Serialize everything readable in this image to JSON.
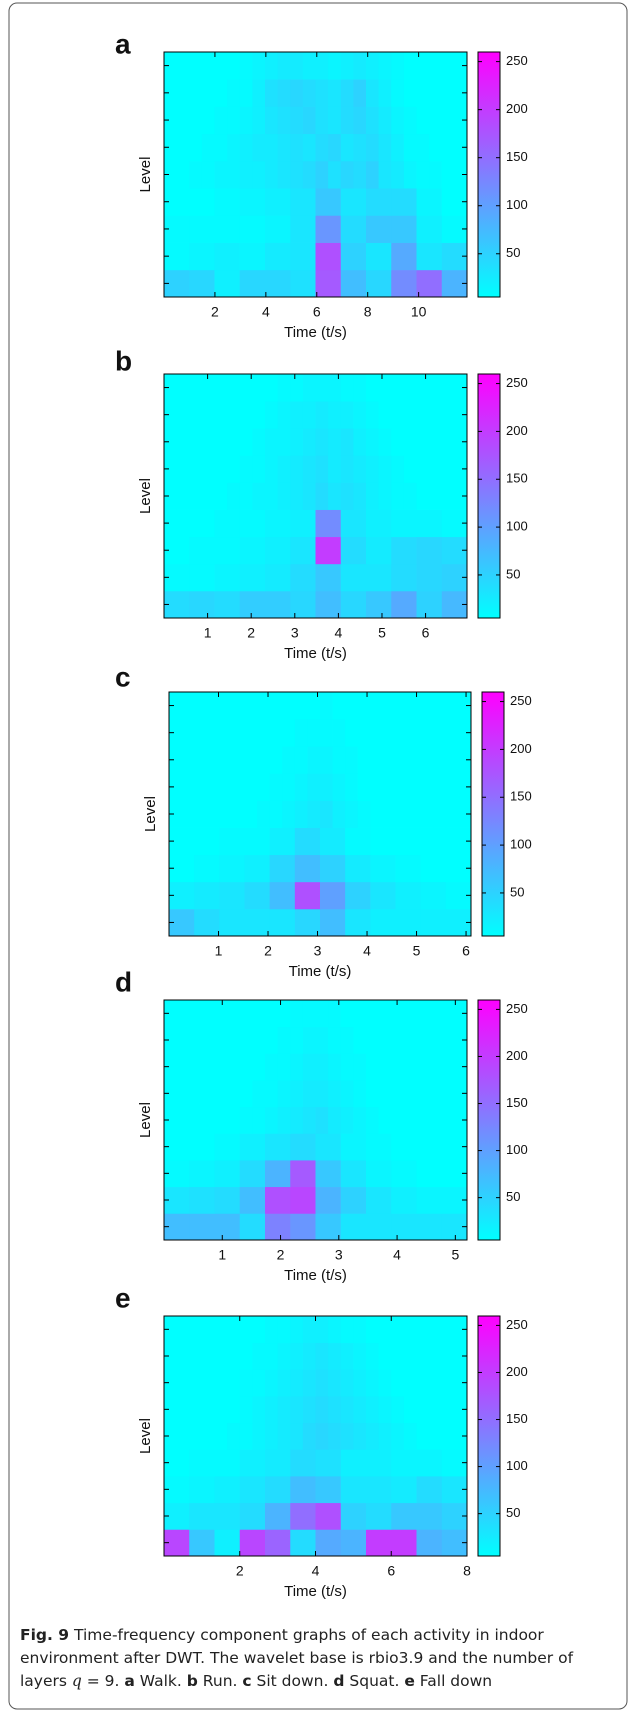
{
  "chart_data": [
    {
      "type": "heatmap",
      "panel_label": "a",
      "xlabel": "Time (t/s)",
      "ylabel": "Level",
      "xlim": [
        0,
        11.9
      ],
      "xticks": [
        2,
        4,
        6,
        8,
        10
      ],
      "clim": [
        5,
        260
      ],
      "cticks": [
        50,
        100,
        150,
        200,
        250
      ],
      "colormap": [
        "#00ffff",
        "#ff00ff"
      ],
      "values": [
        [
          50,
          45,
          20,
          45,
          45,
          35,
          170,
          70,
          45,
          120,
          150,
          80
        ],
        [
          10,
          15,
          20,
          15,
          25,
          30,
          180,
          50,
          30,
          90,
          30,
          40
        ],
        [
          10,
          10,
          10,
          10,
          15,
          30,
          110,
          40,
          60,
          60,
          20,
          10
        ],
        [
          5,
          5,
          10,
          15,
          20,
          30,
          60,
          30,
          40,
          40,
          15,
          5
        ],
        [
          5,
          5,
          10,
          10,
          15,
          15,
          20,
          20,
          25,
          30,
          35,
          40,
          50,
          35,
          45,
          40,
          50,
          30,
          25,
          15,
          10,
          10,
          5,
          5
        ],
        [
          5,
          5,
          5,
          10,
          10,
          15,
          20,
          25,
          25,
          30,
          35,
          30,
          40,
          45,
          30,
          35,
          40,
          30,
          20,
          10,
          10,
          5,
          5,
          5
        ],
        [
          5,
          5,
          5,
          5,
          10,
          10,
          15,
          20,
          30,
          35,
          40,
          45,
          35,
          30,
          40,
          45,
          35,
          25,
          15,
          10,
          5,
          5,
          5,
          5
        ],
        [
          5,
          5,
          5,
          5,
          5,
          10,
          10,
          20,
          35,
          40,
          45,
          40,
          35,
          30,
          40,
          50,
          30,
          20,
          10,
          5,
          5,
          5,
          5,
          5
        ],
        [
          5,
          5,
          5,
          5,
          5,
          5,
          10,
          15,
          20,
          25,
          25,
          20,
          20,
          15,
          20,
          25,
          20,
          15,
          10,
          5,
          5,
          5,
          5,
          5
        ]
      ]
    },
    {
      "type": "heatmap",
      "panel_label": "b",
      "xlabel": "Time (t/s)",
      "ylabel": "Level",
      "xlim": [
        0,
        6.95
      ],
      "xticks": [
        1,
        2,
        3,
        4,
        5,
        6
      ],
      "clim": [
        5,
        260
      ],
      "cticks": [
        50,
        100,
        150,
        200,
        250
      ],
      "colormap": [
        "#00ffff",
        "#ff00ff"
      ],
      "values": [
        [
          40,
          45,
          40,
          55,
          55,
          45,
          70,
          45,
          60,
          90,
          50,
          75
        ],
        [
          10,
          10,
          15,
          20,
          25,
          40,
          60,
          30,
          30,
          40,
          45,
          50
        ],
        [
          5,
          10,
          10,
          15,
          20,
          30,
          200,
          40,
          25,
          40,
          45,
          40
        ],
        [
          5,
          5,
          10,
          10,
          15,
          20,
          120,
          30,
          20,
          15,
          15,
          10
        ],
        [
          5,
          5,
          5,
          5,
          5,
          10,
          10,
          15,
          15,
          20,
          25,
          30,
          40,
          30,
          35,
          30,
          20,
          15,
          10,
          10,
          5,
          5,
          5,
          5
        ],
        [
          5,
          5,
          5,
          5,
          5,
          5,
          10,
          10,
          15,
          20,
          25,
          30,
          35,
          25,
          30,
          25,
          20,
          15,
          10,
          5,
          5,
          5,
          5,
          5
        ],
        [
          5,
          5,
          5,
          5,
          5,
          5,
          5,
          10,
          15,
          15,
          20,
          25,
          30,
          25,
          30,
          20,
          15,
          10,
          5,
          5,
          5,
          5,
          5,
          5
        ],
        [
          5,
          5,
          5,
          5,
          5,
          5,
          5,
          5,
          10,
          15,
          20,
          20,
          25,
          20,
          20,
          15,
          10,
          5,
          5,
          5,
          5,
          5,
          5,
          5
        ],
        [
          5,
          5,
          5,
          5,
          5,
          5,
          5,
          5,
          5,
          10,
          10,
          15,
          15,
          15,
          10,
          10,
          5,
          5,
          5,
          5,
          5,
          5,
          5,
          5
        ]
      ]
    },
    {
      "type": "heatmap",
      "panel_label": "c",
      "xlabel": "Time (t/s)",
      "ylabel": "Level",
      "xlim": [
        0,
        6.1
      ],
      "xticks": [
        1,
        2,
        3,
        4,
        5,
        6
      ],
      "clim": [
        5,
        260
      ],
      "cticks": [
        50,
        100,
        150,
        200,
        250
      ],
      "colormap": [
        "#00ffff",
        "#ff00ff"
      ],
      "values": [
        [
          60,
          40,
          30,
          30,
          30,
          45,
          70,
          30,
          20,
          20,
          20,
          20
        ],
        [
          20,
          25,
          30,
          40,
          70,
          180,
          100,
          50,
          30,
          20,
          15,
          10
        ],
        [
          5,
          10,
          15,
          20,
          45,
          70,
          50,
          25,
          15,
          10,
          5,
          5
        ],
        [
          5,
          5,
          10,
          10,
          20,
          40,
          25,
          10,
          5,
          5,
          5,
          5
        ],
        [
          5,
          5,
          5,
          5,
          5,
          5,
          5,
          10,
          10,
          15,
          20,
          25,
          30,
          20,
          15,
          10,
          5,
          5,
          5,
          5,
          5,
          5,
          5,
          5
        ],
        [
          5,
          5,
          5,
          5,
          5,
          5,
          5,
          5,
          10,
          10,
          15,
          20,
          20,
          15,
          10,
          5,
          5,
          5,
          5,
          5,
          5,
          5,
          5,
          5
        ],
        [
          5,
          5,
          5,
          5,
          5,
          5,
          5,
          5,
          5,
          10,
          10,
          15,
          15,
          10,
          10,
          5,
          5,
          5,
          5,
          5,
          5,
          5,
          5,
          5
        ],
        [
          5,
          5,
          5,
          5,
          5,
          5,
          5,
          5,
          5,
          5,
          10,
          10,
          10,
          10,
          5,
          5,
          5,
          5,
          5,
          5,
          5,
          5,
          5,
          5
        ],
        [
          5,
          5,
          5,
          5,
          5,
          5,
          5,
          5,
          5,
          5,
          5,
          5,
          10,
          5,
          5,
          5,
          5,
          5,
          5,
          5,
          5,
          5,
          5,
          5
        ]
      ]
    },
    {
      "type": "heatmap",
      "panel_label": "d",
      "xlabel": "Time (t/s)",
      "ylabel": "Level",
      "xlim": [
        0,
        5.2
      ],
      "xticks": [
        1,
        2,
        3,
        4,
        5
      ],
      "clim": [
        5,
        260
      ],
      "cticks": [
        50,
        100,
        150,
        200,
        250
      ],
      "colormap": [
        "#00ffff",
        "#ff00ff"
      ],
      "values": [
        [
          70,
          70,
          70,
          40,
          130,
          110,
          60,
          30,
          30,
          30,
          30,
          30
        ],
        [
          30,
          35,
          40,
          70,
          180,
          190,
          80,
          50,
          30,
          20,
          15,
          15
        ],
        [
          10,
          15,
          20,
          40,
          80,
          170,
          60,
          30,
          15,
          10,
          5,
          5
        ],
        [
          5,
          5,
          10,
          20,
          30,
          40,
          30,
          15,
          10,
          5,
          5,
          5
        ],
        [
          5,
          5,
          5,
          5,
          5,
          5,
          10,
          10,
          15,
          20,
          25,
          30,
          35,
          25,
          20,
          15,
          10,
          5,
          5,
          5,
          5,
          5,
          5,
          5
        ],
        [
          5,
          5,
          5,
          5,
          5,
          5,
          5,
          10,
          10,
          15,
          20,
          25,
          25,
          20,
          15,
          10,
          5,
          5,
          5,
          5,
          5,
          5,
          5,
          5
        ],
        [
          5,
          5,
          5,
          5,
          5,
          5,
          5,
          5,
          10,
          10,
          15,
          20,
          20,
          15,
          10,
          10,
          5,
          5,
          5,
          5,
          5,
          5,
          5,
          5
        ],
        [
          5,
          5,
          5,
          5,
          5,
          5,
          5,
          5,
          5,
          10,
          10,
          15,
          15,
          10,
          10,
          5,
          5,
          5,
          5,
          5,
          5,
          5,
          5,
          5
        ],
        [
          5,
          5,
          5,
          5,
          5,
          5,
          5,
          5,
          5,
          5,
          10,
          10,
          10,
          10,
          5,
          5,
          5,
          5,
          5,
          5,
          5,
          5,
          5,
          5
        ]
      ]
    },
    {
      "type": "heatmap",
      "panel_label": "e",
      "xlabel": "Time (t/s)",
      "ylabel": "Level",
      "xlim": [
        0,
        8
      ],
      "xticks": [
        2,
        4,
        6,
        8
      ],
      "clim": [
        5,
        260
      ],
      "cticks": [
        50,
        100,
        150,
        200,
        250
      ],
      "colormap": [
        "#00ffff",
        "#ff00ff"
      ],
      "values": [
        [
          190,
          60,
          20,
          190,
          160,
          40,
          90,
          80,
          200,
          200,
          80,
          70
        ],
        [
          20,
          30,
          30,
          40,
          80,
          150,
          180,
          50,
          40,
          60,
          60,
          50
        ],
        [
          10,
          15,
          20,
          30,
          40,
          70,
          60,
          30,
          30,
          25,
          40,
          30
        ],
        [
          5,
          10,
          10,
          20,
          25,
          40,
          35,
          20,
          20,
          15,
          15,
          10
        ],
        [
          5,
          5,
          5,
          5,
          5,
          10,
          10,
          15,
          20,
          25,
          30,
          40,
          45,
          40,
          35,
          30,
          25,
          20,
          15,
          10,
          5,
          5,
          5,
          5
        ],
        [
          5,
          5,
          5,
          5,
          5,
          5,
          10,
          15,
          20,
          25,
          30,
          35,
          40,
          35,
          30,
          25,
          20,
          15,
          10,
          5,
          5,
          5,
          5,
          5
        ],
        [
          5,
          5,
          5,
          5,
          5,
          5,
          10,
          10,
          15,
          20,
          25,
          30,
          35,
          30,
          25,
          20,
          15,
          10,
          5,
          5,
          5,
          5,
          5,
          5
        ],
        [
          5,
          5,
          5,
          5,
          5,
          5,
          5,
          10,
          10,
          15,
          20,
          25,
          30,
          25,
          20,
          15,
          10,
          5,
          5,
          5,
          5,
          5,
          5,
          5
        ],
        [
          5,
          5,
          5,
          5,
          5,
          5,
          5,
          5,
          10,
          10,
          15,
          20,
          20,
          15,
          10,
          10,
          5,
          5,
          5,
          5,
          5,
          5,
          5,
          5
        ]
      ]
    }
  ],
  "caption": [
    {
      "text": "Fig. 9",
      "bold": true
    },
    {
      "text": " Time-frequency component graphs of each activity in indoor environment after DWT. The wavelet base is rbio3.9 and the number of layers ",
      "bold": false
    },
    {
      "text": "q",
      "italic": true
    },
    {
      "text": " = 9. ",
      "bold": false
    },
    {
      "text": "a",
      "bold": true
    },
    {
      "text": " Walk. ",
      "bold": false
    },
    {
      "text": "b",
      "bold": true
    },
    {
      "text": " Run. ",
      "bold": false
    },
    {
      "text": "c",
      "bold": true
    },
    {
      "text": " Sit down. ",
      "bold": false
    },
    {
      "text": "d",
      "bold": true
    },
    {
      "text": " Squat. ",
      "bold": false
    },
    {
      "text": "e",
      "bold": true
    },
    {
      "text": " Fall down",
      "bold": false
    }
  ]
}
